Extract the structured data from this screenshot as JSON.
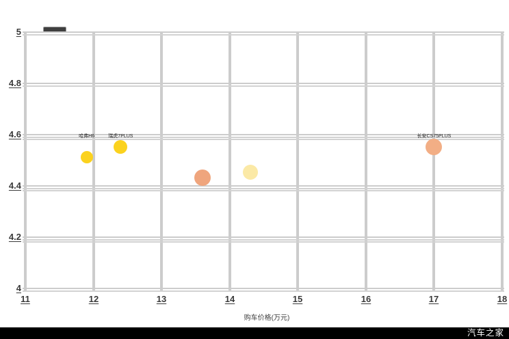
{
  "watermark": "汽车之家",
  "colors": {
    "grid": "#cccccc",
    "tick_text": "#3a3a3a",
    "footer_bg": "#000000",
    "footer_text": "#ffffff",
    "gold": "#fbd21e",
    "salmon": "#efa57d",
    "salmon_light": "#f2ae85",
    "cream": "#fbe9a6"
  },
  "chart_data": {
    "type": "scatter",
    "title": "",
    "xlabel": "购车价格(万元)",
    "ylabel": "",
    "xlim": [
      11,
      18
    ],
    "ylim": [
      4,
      5
    ],
    "x_ticks": [
      "11",
      "12",
      "13",
      "14",
      "15",
      "16",
      "17",
      "18"
    ],
    "y_ticks": [
      "5",
      "4.8",
      "4.6",
      "4.4",
      "4.2",
      "4"
    ],
    "grid": "on",
    "legend_position": "none",
    "points": [
      {
        "label": "哈弗H6",
        "x": 11.9,
        "y": 4.51,
        "r": 9,
        "color": "#fbd21e"
      },
      {
        "label": "瑞虎7PLUS",
        "x": 12.4,
        "y": 4.55,
        "r": 10,
        "color": "#fbd21e"
      },
      {
        "label": "",
        "x": 13.6,
        "y": 4.43,
        "r": 12,
        "color": "#efa57d"
      },
      {
        "label": "",
        "x": 14.3,
        "y": 4.45,
        "r": 11,
        "color": "#fbe9a6"
      },
      {
        "label": "长安CS75PLUS",
        "x": 17.0,
        "y": 4.55,
        "r": 12,
        "color": "#f2ae85"
      }
    ]
  }
}
